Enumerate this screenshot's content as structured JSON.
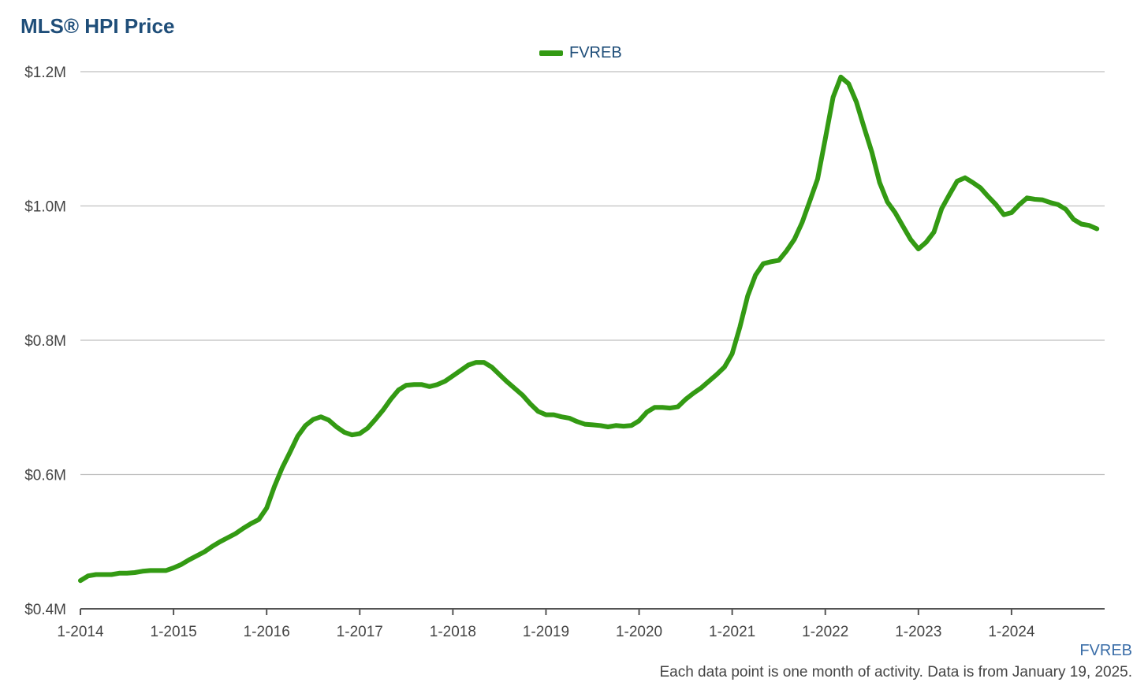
{
  "colors": {
    "series": "#339a13",
    "title": "#1f4e79",
    "grid": "#bfbfbf",
    "axis": "#555555"
  },
  "chart_data": {
    "type": "line",
    "title": "MLS® HPI Price",
    "xlabel": "",
    "ylabel": "",
    "legend_position": "top-center",
    "grid": true,
    "xlim": [
      "2014-01",
      "2024-12"
    ],
    "ylim": [
      400000,
      1200000
    ],
    "y_ticks": [
      400000,
      600000,
      800000,
      1000000,
      1200000
    ],
    "y_tick_labels": [
      "$0.4M",
      "$0.6M",
      "$0.8M",
      "$1.0M",
      "$1.2M"
    ],
    "x_tick_labels": [
      "1-2014",
      "1-2015",
      "1-2016",
      "1-2017",
      "1-2018",
      "1-2019",
      "1-2020",
      "1-2021",
      "1-2022",
      "1-2023",
      "1-2024"
    ],
    "series": [
      {
        "name": "FVREB",
        "points": [
          [
            "2014-01",
            442000
          ],
          [
            "2014-02",
            449000
          ],
          [
            "2014-03",
            451000
          ],
          [
            "2014-04",
            451000
          ],
          [
            "2014-05",
            451000
          ],
          [
            "2014-06",
            453000
          ],
          [
            "2014-07",
            453000
          ],
          [
            "2014-08",
            454000
          ],
          [
            "2014-09",
            456000
          ],
          [
            "2014-10",
            457000
          ],
          [
            "2014-11",
            457000
          ],
          [
            "2014-12",
            457000
          ],
          [
            "2015-01",
            461000
          ],
          [
            "2015-02",
            466000
          ],
          [
            "2015-03",
            473000
          ],
          [
            "2015-04",
            479000
          ],
          [
            "2015-05",
            485000
          ],
          [
            "2015-06",
            493000
          ],
          [
            "2015-07",
            500000
          ],
          [
            "2015-08",
            506000
          ],
          [
            "2015-09",
            512000
          ],
          [
            "2015-10",
            520000
          ],
          [
            "2015-11",
            527000
          ],
          [
            "2015-12",
            533000
          ],
          [
            "2016-01",
            550000
          ],
          [
            "2016-02",
            582000
          ],
          [
            "2016-03",
            610000
          ],
          [
            "2016-04",
            633000
          ],
          [
            "2016-05",
            657000
          ],
          [
            "2016-06",
            673000
          ],
          [
            "2016-07",
            682000
          ],
          [
            "2016-08",
            686000
          ],
          [
            "2016-09",
            681000
          ],
          [
            "2016-10",
            671000
          ],
          [
            "2016-11",
            663000
          ],
          [
            "2016-12",
            659000
          ],
          [
            "2017-01",
            661000
          ],
          [
            "2017-02",
            669000
          ],
          [
            "2017-03",
            682000
          ],
          [
            "2017-04",
            696000
          ],
          [
            "2017-05",
            712000
          ],
          [
            "2017-06",
            726000
          ],
          [
            "2017-07",
            733000
          ],
          [
            "2017-08",
            734000
          ],
          [
            "2017-09",
            734000
          ],
          [
            "2017-10",
            731000
          ],
          [
            "2017-11",
            734000
          ],
          [
            "2017-12",
            739000
          ],
          [
            "2018-01",
            747000
          ],
          [
            "2018-02",
            755000
          ],
          [
            "2018-03",
            763000
          ],
          [
            "2018-04",
            767000
          ],
          [
            "2018-05",
            767000
          ],
          [
            "2018-06",
            760000
          ],
          [
            "2018-07",
            749000
          ],
          [
            "2018-08",
            738000
          ],
          [
            "2018-09",
            728000
          ],
          [
            "2018-10",
            718000
          ],
          [
            "2018-11",
            705000
          ],
          [
            "2018-12",
            694000
          ],
          [
            "2019-01",
            689000
          ],
          [
            "2019-02",
            689000
          ],
          [
            "2019-03",
            686000
          ],
          [
            "2019-04",
            684000
          ],
          [
            "2019-05",
            679000
          ],
          [
            "2019-06",
            675000
          ],
          [
            "2019-07",
            674000
          ],
          [
            "2019-08",
            673000
          ],
          [
            "2019-09",
            671000
          ],
          [
            "2019-10",
            673000
          ],
          [
            "2019-11",
            672000
          ],
          [
            "2019-12",
            673000
          ],
          [
            "2020-01",
            680000
          ],
          [
            "2020-02",
            693000
          ],
          [
            "2020-03",
            700000
          ],
          [
            "2020-04",
            700000
          ],
          [
            "2020-05",
            699000
          ],
          [
            "2020-06",
            701000
          ],
          [
            "2020-07",
            712000
          ],
          [
            "2020-08",
            721000
          ],
          [
            "2020-09",
            729000
          ],
          [
            "2020-10",
            739000
          ],
          [
            "2020-11",
            749000
          ],
          [
            "2020-12",
            760000
          ],
          [
            "2021-01",
            780000
          ],
          [
            "2021-02",
            820000
          ],
          [
            "2021-03",
            866000
          ],
          [
            "2021-04",
            897000
          ],
          [
            "2021-05",
            914000
          ],
          [
            "2021-06",
            917000
          ],
          [
            "2021-07",
            919000
          ],
          [
            "2021-08",
            933000
          ],
          [
            "2021-09",
            950000
          ],
          [
            "2021-10",
            975000
          ],
          [
            "2021-11",
            1007000
          ],
          [
            "2021-12",
            1040000
          ],
          [
            "2022-01",
            1100000
          ],
          [
            "2022-02",
            1162000
          ],
          [
            "2022-03",
            1192000
          ],
          [
            "2022-04",
            1182000
          ],
          [
            "2022-05",
            1155000
          ],
          [
            "2022-06",
            1117000
          ],
          [
            "2022-07",
            1080000
          ],
          [
            "2022-08",
            1035000
          ],
          [
            "2022-09",
            1006000
          ],
          [
            "2022-10",
            990000
          ],
          [
            "2022-11",
            970000
          ],
          [
            "2022-12",
            950000
          ],
          [
            "2023-01",
            936000
          ],
          [
            "2023-02",
            946000
          ],
          [
            "2023-03",
            961000
          ],
          [
            "2023-04",
            996000
          ],
          [
            "2023-05",
            1017000
          ],
          [
            "2023-06",
            1037000
          ],
          [
            "2023-07",
            1042000
          ],
          [
            "2023-08",
            1035000
          ],
          [
            "2023-09",
            1027000
          ],
          [
            "2023-10",
            1014000
          ],
          [
            "2023-11",
            1002000
          ],
          [
            "2023-12",
            987000
          ],
          [
            "2024-01",
            990000
          ],
          [
            "2024-02",
            1002000
          ],
          [
            "2024-03",
            1012000
          ],
          [
            "2024-04",
            1010000
          ],
          [
            "2024-05",
            1009000
          ],
          [
            "2024-06",
            1005000
          ],
          [
            "2024-07",
            1002000
          ],
          [
            "2024-08",
            995000
          ],
          [
            "2024-09",
            980000
          ],
          [
            "2024-10",
            973000
          ],
          [
            "2024-11",
            971000
          ],
          [
            "2024-12",
            966000
          ]
        ]
      }
    ]
  },
  "source_label": "FVREB",
  "footnote": "Each data point is one month of activity. Data is from January 19, 2025."
}
